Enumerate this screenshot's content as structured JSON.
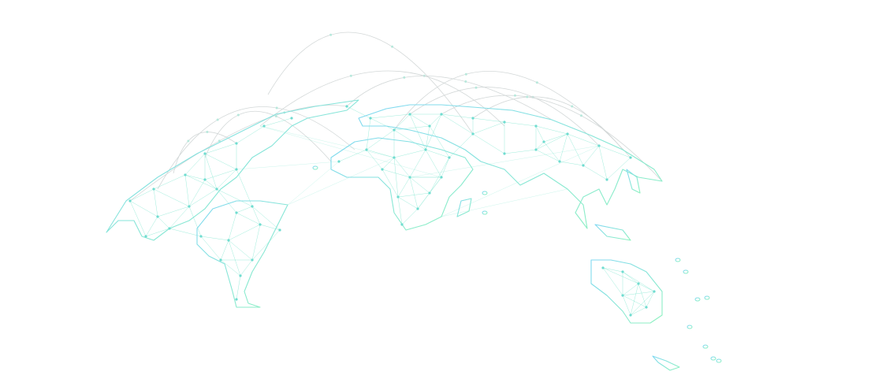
{
  "map": {
    "style": "network world map illustration",
    "colors": {
      "land_stroke_start": "#7fd8f2",
      "land_stroke_end": "#8ef2bf",
      "network_line": "#7fe6cf",
      "arc": "#d3d8d8",
      "node": "#6fdcd0"
    }
  }
}
